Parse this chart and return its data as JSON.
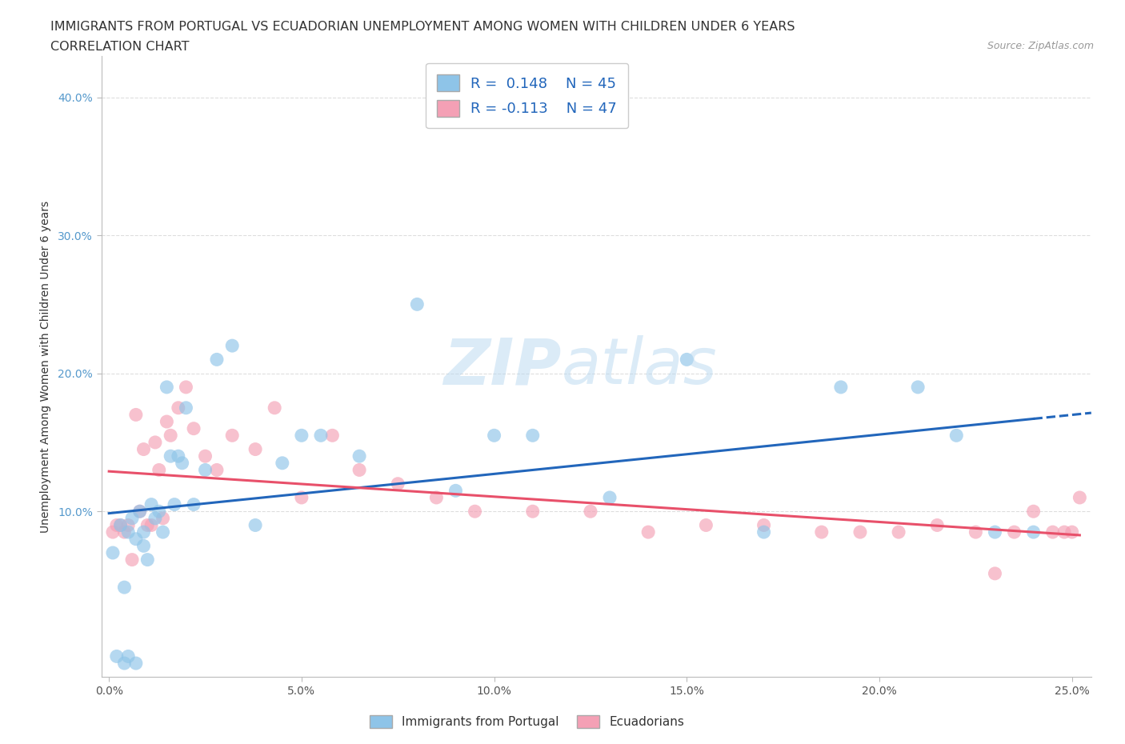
{
  "title_line1": "IMMIGRANTS FROM PORTUGAL VS ECUADORIAN UNEMPLOYMENT AMONG WOMEN WITH CHILDREN UNDER 6 YEARS",
  "title_line2": "CORRELATION CHART",
  "source_text": "Source: ZipAtlas.com",
  "ylabel": "Unemployment Among Women with Children Under 6 years",
  "xlim": [
    -0.002,
    0.255
  ],
  "ylim": [
    -0.02,
    0.43
  ],
  "xtick_labels": [
    "0.0%",
    "5.0%",
    "10.0%",
    "15.0%",
    "20.0%",
    "25.0%"
  ],
  "xtick_values": [
    0.0,
    0.05,
    0.1,
    0.15,
    0.2,
    0.25
  ],
  "ytick_labels": [
    "10.0%",
    "20.0%",
    "30.0%",
    "40.0%"
  ],
  "ytick_values": [
    0.1,
    0.2,
    0.3,
    0.4
  ],
  "R_blue": 0.148,
  "N_blue": 45,
  "R_pink": -0.113,
  "N_pink": 47,
  "legend_label_blue": "Immigrants from Portugal",
  "legend_label_pink": "Ecuadorians",
  "color_blue": "#8ec4e8",
  "color_pink": "#f4a0b5",
  "line_color_blue": "#2266bb",
  "line_color_pink": "#e8506a",
  "background_color": "#ffffff",
  "grid_color": "#dddddd",
  "blue_x": [
    0.001,
    0.002,
    0.003,
    0.004,
    0.004,
    0.005,
    0.005,
    0.006,
    0.007,
    0.007,
    0.008,
    0.009,
    0.009,
    0.01,
    0.011,
    0.012,
    0.013,
    0.014,
    0.015,
    0.016,
    0.017,
    0.018,
    0.019,
    0.02,
    0.022,
    0.025,
    0.028,
    0.032,
    0.038,
    0.045,
    0.05,
    0.055,
    0.065,
    0.08,
    0.09,
    0.1,
    0.11,
    0.13,
    0.15,
    0.17,
    0.19,
    0.21,
    0.22,
    0.23,
    0.24
  ],
  "blue_y": [
    0.07,
    -0.005,
    0.09,
    -0.01,
    0.045,
    0.085,
    -0.005,
    0.095,
    0.08,
    -0.01,
    0.1,
    0.075,
    0.085,
    0.065,
    0.105,
    0.095,
    0.1,
    0.085,
    0.19,
    0.14,
    0.105,
    0.14,
    0.135,
    0.175,
    0.105,
    0.13,
    0.21,
    0.22,
    0.09,
    0.135,
    0.155,
    0.155,
    0.14,
    0.25,
    0.115,
    0.155,
    0.155,
    0.11,
    0.21,
    0.085,
    0.19,
    0.19,
    0.155,
    0.085,
    0.085
  ],
  "pink_x": [
    0.001,
    0.002,
    0.003,
    0.004,
    0.005,
    0.006,
    0.007,
    0.008,
    0.009,
    0.01,
    0.011,
    0.012,
    0.013,
    0.014,
    0.015,
    0.016,
    0.018,
    0.02,
    0.022,
    0.025,
    0.028,
    0.032,
    0.038,
    0.043,
    0.05,
    0.058,
    0.065,
    0.075,
    0.085,
    0.095,
    0.11,
    0.125,
    0.14,
    0.155,
    0.17,
    0.185,
    0.195,
    0.205,
    0.215,
    0.225,
    0.23,
    0.235,
    0.24,
    0.245,
    0.248,
    0.25,
    0.252
  ],
  "pink_y": [
    0.085,
    0.09,
    0.09,
    0.085,
    0.09,
    0.065,
    0.17,
    0.1,
    0.145,
    0.09,
    0.09,
    0.15,
    0.13,
    0.095,
    0.165,
    0.155,
    0.175,
    0.19,
    0.16,
    0.14,
    0.13,
    0.155,
    0.145,
    0.175,
    0.11,
    0.155,
    0.13,
    0.12,
    0.11,
    0.1,
    0.1,
    0.1,
    0.085,
    0.09,
    0.09,
    0.085,
    0.085,
    0.085,
    0.09,
    0.085,
    0.055,
    0.085,
    0.1,
    0.085,
    0.085,
    0.085,
    0.11
  ]
}
